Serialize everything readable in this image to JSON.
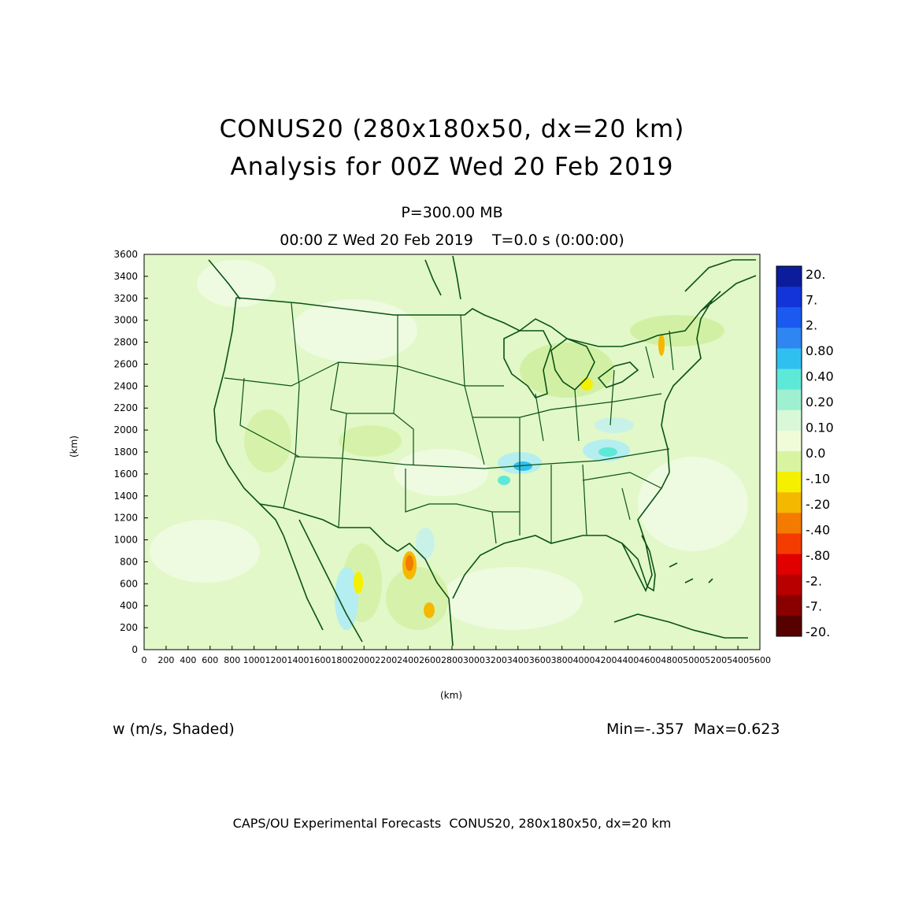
{
  "title": {
    "line1": "CONUS20 (280x180x50, dx=20 km)",
    "line2": "Analysis for 00Z Wed 20 Feb 2019"
  },
  "level": "P=300.00 MB",
  "time_line": "00:00 Z Wed 20 Feb 2019    T=0.0 s (0:00:00)",
  "field_label": "w (m/s, Shaded)",
  "minmax": "Min=-.357  Max=0.623",
  "footer": "CAPS/OU Experimental Forecasts  CONUS20, 280x180x50, dx=20 km",
  "axes": {
    "x_label": "(km)",
    "y_label": "(km)",
    "x_range": [
      0,
      5600
    ],
    "y_range": [
      0,
      3600
    ],
    "x_ticks": [
      "0",
      "200",
      "400",
      "600",
      "800",
      "1000",
      "1200",
      "1400",
      "1600",
      "1800",
      "2000",
      "2200",
      "2400",
      "2600",
      "2800",
      "3000",
      "3200",
      "3400",
      "3600",
      "3800",
      "4000",
      "4200",
      "4400",
      "4600",
      "4800",
      "5000",
      "5200",
      "5400",
      "5600"
    ],
    "y_ticks": [
      "0",
      "200",
      "400",
      "600",
      "800",
      "1000",
      "1200",
      "1400",
      "1600",
      "1800",
      "2000",
      "2200",
      "2400",
      "2600",
      "2800",
      "3000",
      "3200",
      "3400",
      "3600"
    ]
  },
  "colorbar": {
    "labels_top_to_bottom": [
      "20.",
      "7.",
      "2.",
      "0.80",
      "0.40",
      "0.20",
      "0.10",
      "0.0",
      "-.10",
      "-.20",
      "-.40",
      "-.80",
      "-2.",
      "-7.",
      "-20."
    ],
    "colors_top_to_bottom": [
      "#0b1d9c",
      "#1234d8",
      "#1a5af0",
      "#2f86f2",
      "#2fc0f0",
      "#5ee8d8",
      "#9ef0d0",
      "#d8f8d8",
      "#f0fcd8",
      "#d8f4a0",
      "#f5f000",
      "#f5b800",
      "#f57a00",
      "#f53c00",
      "#e00000",
      "#b80000",
      "#8a0000",
      "#560000"
    ]
  },
  "colors": {
    "background_green": "#e2f8c8",
    "light_green": "#d4f2b0",
    "map_lines": "#0a5214"
  }
}
